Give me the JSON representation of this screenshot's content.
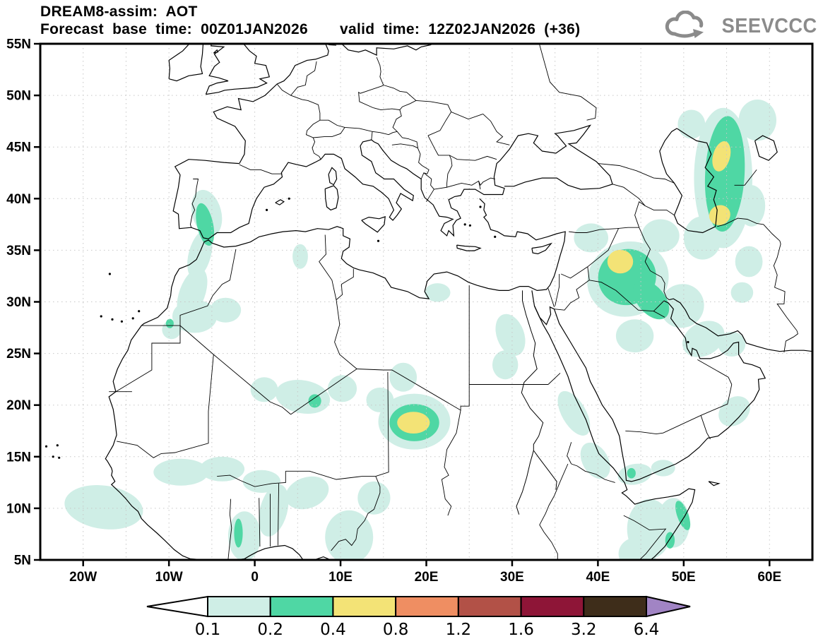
{
  "header": {
    "line1": "DREAM8-assim: AOT",
    "line2_left": "Forecast base time: 00Z01JAN2026",
    "line2_right": "valid time: 12Z02JAN2026 (+36)"
  },
  "logo": {
    "text": "SEEVCCC",
    "color": "#8b8b8b"
  },
  "axes": {
    "x_ticks": [
      {
        "lon": -20,
        "label": "20W"
      },
      {
        "lon": -10,
        "label": "10W"
      },
      {
        "lon": 0,
        "label": "0"
      },
      {
        "lon": 10,
        "label": "10E"
      },
      {
        "lon": 20,
        "label": "20E"
      },
      {
        "lon": 30,
        "label": "30E"
      },
      {
        "lon": 40,
        "label": "40E"
      },
      {
        "lon": 50,
        "label": "50E"
      },
      {
        "lon": 60,
        "label": "60E"
      }
    ],
    "y_ticks": [
      {
        "lat": 55,
        "label": "55N"
      },
      {
        "lat": 50,
        "label": "50N"
      },
      {
        "lat": 45,
        "label": "45N"
      },
      {
        "lat": 40,
        "label": "40N"
      },
      {
        "lat": 35,
        "label": "35N"
      },
      {
        "lat": 30,
        "label": "30N"
      },
      {
        "lat": 25,
        "label": "25N"
      },
      {
        "lat": 20,
        "label": "20N"
      },
      {
        "lat": 15,
        "label": "15N"
      },
      {
        "lat": 10,
        "label": "10N"
      },
      {
        "lat": 5,
        "label": "5N"
      }
    ]
  },
  "colorbar": {
    "labels": [
      "0.1",
      "0.2",
      "0.4",
      "0.8",
      "1.2",
      "1.6",
      "3.2",
      "6.4"
    ],
    "box_colors": [
      "#cfeee6",
      "#4fd7a4",
      "#f3e376",
      "#ef8e62",
      "#b25147",
      "#8e1537",
      "#3e2d1a"
    ],
    "left_arrow_color": "#ffffff",
    "right_arrow_color": "#a184c4"
  },
  "chart_data": {
    "type": "filled-contour-map",
    "title": "DREAM8-assim: AOT",
    "variable": "AOT (aerosol optical thickness)",
    "forecast_base_time": "00Z01JAN2026",
    "valid_time": "12Z02JAN2026",
    "lead_hours": 36,
    "lon_range": [
      -25,
      65
    ],
    "lat_range": [
      5,
      55
    ],
    "grid_step_deg": 5,
    "levels": [
      0.1,
      0.2,
      0.4,
      0.8,
      1.2,
      1.6,
      3.2,
      6.4
    ],
    "level_fills": {
      "0.1": "#cfeee6",
      "0.2": "#4fd7a4",
      "0.4": "#f3e376"
    },
    "regions": [
      {
        "level": 0.1,
        "ellipses": [
          [
            -5.6,
            38.6,
            1.7,
            2.3,
            -15
          ],
          [
            -6.4,
            34.6,
            1.3,
            2.4,
            15
          ],
          [
            -7.3,
            30.8,
            1.5,
            2.6,
            20
          ],
          [
            -7.0,
            28.6,
            2.6,
            1.6,
            0
          ],
          [
            -3.4,
            29.2,
            1.8,
            1.2,
            0
          ],
          [
            -9.7,
            27.3,
            1.1,
            0.9,
            0
          ],
          [
            5.3,
            34.4,
            0.9,
            1.2,
            0
          ],
          [
            21.3,
            30.9,
            1.5,
            0.9,
            0
          ],
          [
            29.8,
            26.8,
            1.6,
            2.1,
            -20
          ],
          [
            29.2,
            23.9,
            1.5,
            1.4,
            0
          ],
          [
            5.6,
            20.8,
            3.2,
            1.6,
            10
          ],
          [
            1.1,
            21.5,
            1.6,
            1.2,
            0
          ],
          [
            10.2,
            21.6,
            1.7,
            1.3,
            0
          ],
          [
            18.6,
            18.4,
            4.2,
            2.7,
            0
          ],
          [
            17.3,
            22.7,
            1.6,
            1.4,
            0
          ],
          [
            14.6,
            20.5,
            1.6,
            1.2,
            0
          ],
          [
            -8.6,
            13.5,
            3.2,
            1.3,
            0
          ],
          [
            -3.8,
            13.8,
            2.6,
            1.2,
            0
          ],
          [
            0.8,
            12.6,
            2.2,
            1.1,
            0
          ],
          [
            -17.6,
            10.1,
            4.6,
            2.1,
            8
          ],
          [
            -1.2,
            7.3,
            1.9,
            2.4,
            0
          ],
          [
            2.2,
            9.8,
            1.6,
            2.6,
            15
          ],
          [
            6.1,
            11.5,
            2.6,
            1.5,
            -20
          ],
          [
            11.0,
            7.2,
            2.8,
            2.6,
            0
          ],
          [
            13.9,
            11.0,
            1.9,
            1.6,
            0
          ],
          [
            37.2,
            19.2,
            1.4,
            2.4,
            -30
          ],
          [
            39.7,
            14.6,
            1.5,
            1.9,
            -30
          ],
          [
            44.3,
            13.3,
            2.0,
            1.0,
            -10
          ],
          [
            47.6,
            13.9,
            1.4,
            0.8,
            0
          ],
          [
            46.0,
            8.0,
            2.6,
            2.9,
            0
          ],
          [
            48.8,
            8.6,
            1.9,
            2.4,
            0
          ],
          [
            44.6,
            5.6,
            2.2,
            1.6,
            0
          ],
          [
            55.9,
            19.4,
            2.0,
            1.3,
            -40
          ],
          [
            43.5,
            32.2,
            4.8,
            3.6,
            -20
          ],
          [
            39.2,
            36.2,
            2.0,
            1.4,
            0
          ],
          [
            47.3,
            36.4,
            2.2,
            1.6,
            0
          ],
          [
            49.8,
            29.6,
            2.6,
            2.1,
            -40
          ],
          [
            52.3,
            26.4,
            2.6,
            1.6,
            -30
          ],
          [
            55.6,
            25.9,
            1.6,
            1.2,
            0
          ],
          [
            44.3,
            26.7,
            2.2,
            1.6,
            0
          ],
          [
            54.6,
            42.0,
            3.4,
            6.8,
            0
          ],
          [
            52.2,
            36.2,
            2.2,
            2.1,
            0
          ],
          [
            57.6,
            33.9,
            1.6,
            1.5,
            0
          ],
          [
            58.6,
            47.6,
            2.2,
            2.0,
            0
          ],
          [
            50.9,
            47.2,
            1.6,
            1.4,
            0
          ],
          [
            57.9,
            39.3,
            1.6,
            2.0,
            0
          ],
          [
            56.8,
            30.9,
            1.3,
            1.0,
            0
          ]
        ]
      },
      {
        "level": 0.2,
        "ellipses": [
          [
            -5.8,
            37.5,
            0.95,
            2.1,
            -12
          ],
          [
            -9.9,
            27.9,
            0.45,
            0.45,
            0
          ],
          [
            7.0,
            20.4,
            0.75,
            0.65,
            0
          ],
          [
            18.6,
            18.3,
            2.9,
            1.8,
            0
          ],
          [
            43.4,
            32.4,
            3.4,
            2.7,
            -22
          ],
          [
            46.2,
            30.2,
            1.6,
            2.2,
            -40
          ],
          [
            54.8,
            42.4,
            2.3,
            5.6,
            3
          ],
          [
            -1.9,
            7.6,
            0.5,
            1.4,
            0
          ],
          [
            49.9,
            9.3,
            0.65,
            1.5,
            -20
          ],
          [
            48.4,
            6.9,
            0.55,
            0.8,
            0
          ],
          [
            43.9,
            13.4,
            0.5,
            0.5,
            0
          ]
        ]
      },
      {
        "level": 0.4,
        "ellipses": [
          [
            18.5,
            18.3,
            1.9,
            1.05,
            0
          ],
          [
            42.6,
            33.9,
            1.5,
            1.15,
            0
          ],
          [
            54.4,
            44.1,
            1.0,
            1.5,
            15
          ],
          [
            54.2,
            38.4,
            1.25,
            0.95,
            -25
          ]
        ]
      }
    ]
  }
}
